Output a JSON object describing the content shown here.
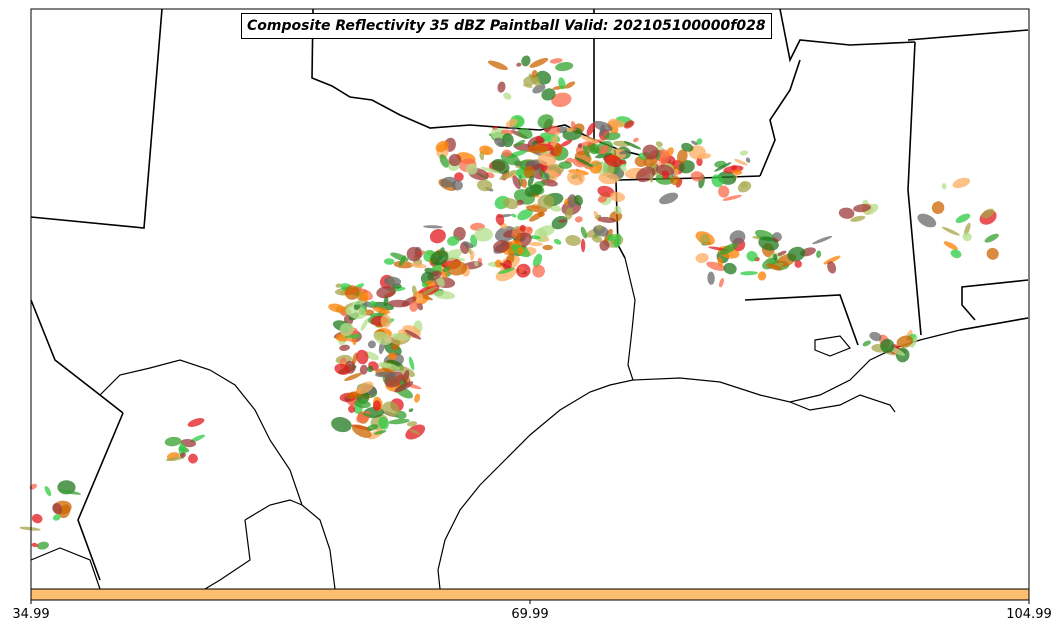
{
  "title": "Composite Reflectivity 35 dBZ Paintball Valid: 202105100000f028",
  "colors": {
    "frame": "#000000",
    "background": "#ffffff",
    "colorbar": "#fdbf6f",
    "members": [
      "#e31a1c",
      "#ff7f00",
      "#33a02c",
      "#b2df8a",
      "#a6a64a",
      "#6a6a6a",
      "#fb6a4a",
      "#fdae61",
      "#1f7a1f",
      "#9e3a3a",
      "#2ecc40",
      "#cc6600"
    ]
  },
  "colorbar": {
    "min": 34.99,
    "max": 104.99,
    "ticks": [
      "34.99",
      "69.99",
      "104.99"
    ]
  }
}
